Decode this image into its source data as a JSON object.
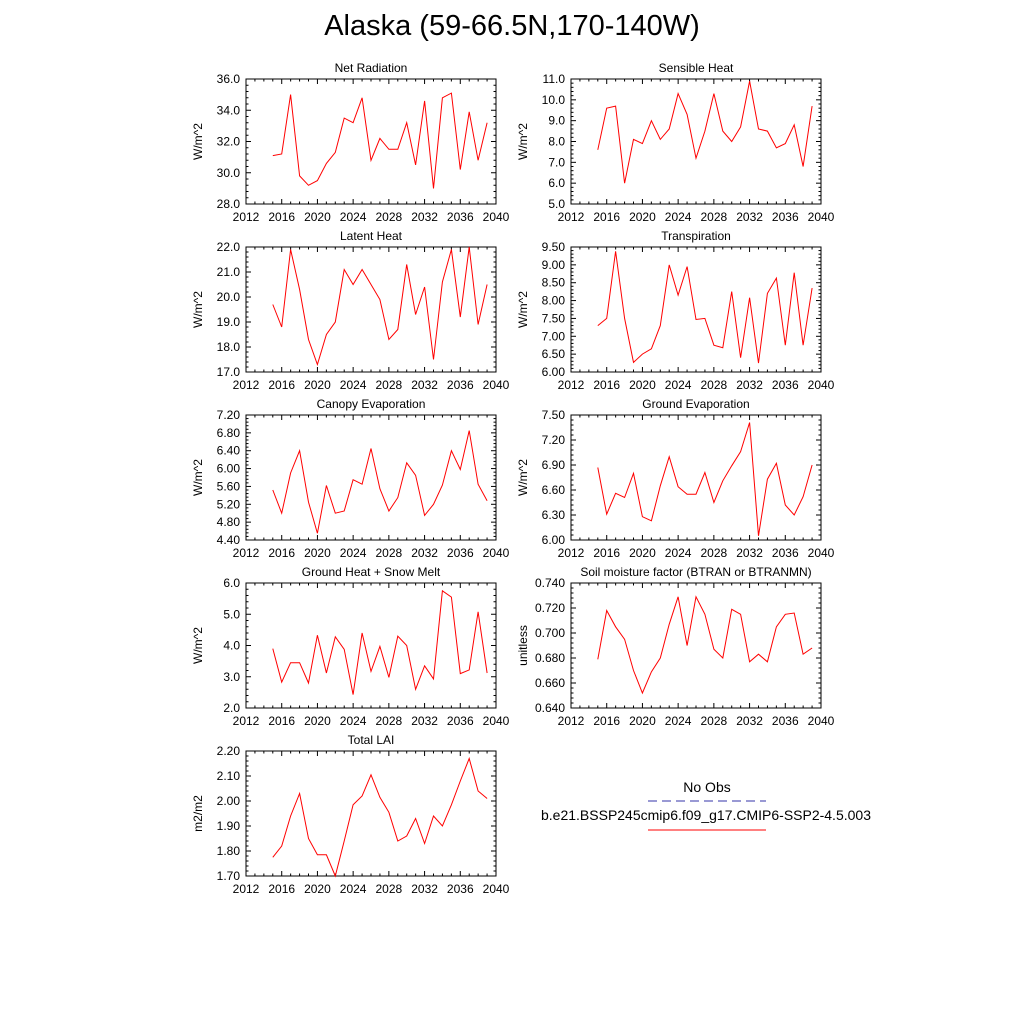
{
  "page": {
    "title": "Alaska (59-66.5N,170-140W)"
  },
  "legend": {
    "obs_label": "No Obs",
    "obs_color": "#3333aa",
    "model_label": "b.e21.BSSP245cmip6.f09_g17.CMIP6-SSP2-4.5.003",
    "model_color": "#ff0000"
  },
  "chart_data": [
    {
      "type": "line",
      "title": "Net Radiation",
      "ylabel": "W/m^2",
      "xlim": [
        2012,
        2040
      ],
      "ylim": [
        28,
        36
      ],
      "xticks": [
        2012,
        2016,
        2020,
        2024,
        2028,
        2032,
        2036,
        2040
      ],
      "yticks": [
        28,
        30,
        32,
        34,
        36
      ],
      "ydecimals": 1,
      "x": [
        2015,
        2016,
        2017,
        2018,
        2019,
        2020,
        2021,
        2022,
        2023,
        2024,
        2025,
        2026,
        2027,
        2028,
        2029,
        2030,
        2031,
        2032,
        2033,
        2034,
        2035,
        2036,
        2037,
        2038,
        2039
      ],
      "y": [
        31.1,
        31.2,
        35.0,
        29.8,
        29.2,
        29.5,
        30.6,
        31.3,
        33.5,
        33.2,
        34.8,
        30.8,
        32.2,
        31.5,
        31.5,
        33.2,
        30.5,
        34.6,
        29.0,
        34.8,
        35.1,
        30.2,
        33.9,
        30.8,
        33.2
      ],
      "series_color": "#ff0000"
    },
    {
      "type": "line",
      "title": "Sensible Heat",
      "ylabel": "W/m^2",
      "xlim": [
        2012,
        2040
      ],
      "ylim": [
        5,
        11
      ],
      "xticks": [
        2012,
        2016,
        2020,
        2024,
        2028,
        2032,
        2036,
        2040
      ],
      "yticks": [
        5,
        6,
        7,
        8,
        9,
        10,
        11
      ],
      "ydecimals": 1,
      "x": [
        2015,
        2016,
        2017,
        2018,
        2019,
        2020,
        2021,
        2022,
        2023,
        2024,
        2025,
        2026,
        2027,
        2028,
        2029,
        2030,
        2031,
        2032,
        2033,
        2034,
        2035,
        2036,
        2037,
        2038,
        2039
      ],
      "y": [
        7.6,
        9.6,
        9.7,
        6.0,
        8.1,
        7.9,
        9.0,
        8.1,
        8.6,
        10.3,
        9.3,
        7.2,
        8.5,
        10.3,
        8.5,
        8.0,
        8.7,
        10.9,
        8.6,
        8.5,
        7.7,
        7.9,
        8.8,
        6.8,
        9.7
      ],
      "series_color": "#ff0000"
    },
    {
      "type": "line",
      "title": "Latent Heat",
      "ylabel": "W/m^2",
      "xlim": [
        2012,
        2040
      ],
      "ylim": [
        17,
        22
      ],
      "xticks": [
        2012,
        2016,
        2020,
        2024,
        2028,
        2032,
        2036,
        2040
      ],
      "yticks": [
        17,
        18,
        19,
        20,
        21,
        22
      ],
      "ydecimals": 1,
      "x": [
        2015,
        2016,
        2017,
        2018,
        2019,
        2020,
        2021,
        2022,
        2023,
        2024,
        2025,
        2026,
        2027,
        2028,
        2029,
        2030,
        2031,
        2032,
        2033,
        2034,
        2035,
        2036,
        2037,
        2038,
        2039
      ],
      "y": [
        19.7,
        18.8,
        21.9,
        20.3,
        18.3,
        17.3,
        18.5,
        19.0,
        21.1,
        20.5,
        21.1,
        20.5,
        19.9,
        18.3,
        18.7,
        21.3,
        19.3,
        20.4,
        17.5,
        20.6,
        21.9,
        19.2,
        22.0,
        18.9,
        20.5
      ],
      "series_color": "#ff0000"
    },
    {
      "type": "line",
      "title": "Transpiration",
      "ylabel": "W/m^2",
      "xlim": [
        2012,
        2040
      ],
      "ylim": [
        6,
        9.5
      ],
      "xticks": [
        2012,
        2016,
        2020,
        2024,
        2028,
        2032,
        2036,
        2040
      ],
      "yticks": [
        6.0,
        6.5,
        7.0,
        7.5,
        8.0,
        8.5,
        9.0,
        9.5
      ],
      "ydecimals": 2,
      "x": [
        2015,
        2016,
        2017,
        2018,
        2019,
        2020,
        2021,
        2022,
        2023,
        2024,
        2025,
        2026,
        2027,
        2028,
        2029,
        2030,
        2031,
        2032,
        2033,
        2034,
        2035,
        2036,
        2037,
        2038,
        2039
      ],
      "y": [
        7.3,
        7.5,
        9.38,
        7.5,
        6.27,
        6.5,
        6.65,
        7.3,
        9.0,
        8.15,
        8.95,
        7.47,
        7.5,
        6.75,
        6.68,
        8.25,
        6.4,
        8.08,
        6.25,
        8.2,
        8.63,
        6.75,
        8.78,
        6.75,
        8.35
      ],
      "series_color": "#ff0000"
    },
    {
      "type": "line",
      "title": "Canopy Evaporation",
      "ylabel": "W/m^2",
      "xlim": [
        2012,
        2040
      ],
      "ylim": [
        4.4,
        7.2
      ],
      "xticks": [
        2012,
        2016,
        2020,
        2024,
        2028,
        2032,
        2036,
        2040
      ],
      "yticks": [
        4.4,
        4.8,
        5.2,
        5.6,
        6.0,
        6.4,
        6.8,
        7.2
      ],
      "ydecimals": 2,
      "x": [
        2015,
        2016,
        2017,
        2018,
        2019,
        2020,
        2021,
        2022,
        2023,
        2024,
        2025,
        2026,
        2027,
        2028,
        2029,
        2030,
        2031,
        2032,
        2033,
        2034,
        2035,
        2036,
        2037,
        2038,
        2039
      ],
      "y": [
        5.52,
        5.0,
        5.9,
        6.4,
        5.25,
        4.55,
        5.62,
        5.0,
        5.05,
        5.75,
        5.65,
        6.45,
        5.55,
        5.05,
        5.35,
        6.13,
        5.85,
        4.95,
        5.2,
        5.63,
        6.4,
        5.98,
        6.85,
        5.65,
        5.28
      ],
      "series_color": "#ff0000"
    },
    {
      "type": "line",
      "title": "Ground Evaporation",
      "ylabel": "W/m^2",
      "xlim": [
        2012,
        2040
      ],
      "ylim": [
        6.0,
        7.5
      ],
      "xticks": [
        2012,
        2016,
        2020,
        2024,
        2028,
        2032,
        2036,
        2040
      ],
      "yticks": [
        6.0,
        6.3,
        6.6,
        6.9,
        7.2,
        7.5
      ],
      "ydecimals": 2,
      "x": [
        2015,
        2016,
        2017,
        2018,
        2019,
        2020,
        2021,
        2022,
        2023,
        2024,
        2025,
        2026,
        2027,
        2028,
        2029,
        2030,
        2031,
        2032,
        2033,
        2034,
        2035,
        2036,
        2037,
        2038,
        2039
      ],
      "y": [
        6.87,
        6.31,
        6.56,
        6.51,
        6.8,
        6.28,
        6.23,
        6.65,
        7.0,
        6.64,
        6.55,
        6.55,
        6.81,
        6.45,
        6.71,
        6.89,
        7.06,
        7.41,
        6.05,
        6.73,
        6.92,
        6.42,
        6.3,
        6.52,
        6.9
      ],
      "series_color": "#ff0000"
    },
    {
      "type": "line",
      "title": "Ground Heat + Snow Melt",
      "ylabel": "W/m^2",
      "xlim": [
        2012,
        2040
      ],
      "ylim": [
        2,
        6
      ],
      "xticks": [
        2012,
        2016,
        2020,
        2024,
        2028,
        2032,
        2036,
        2040
      ],
      "yticks": [
        2,
        3,
        4,
        5,
        6
      ],
      "ydecimals": 1,
      "x": [
        2015,
        2016,
        2017,
        2018,
        2019,
        2020,
        2021,
        2022,
        2023,
        2024,
        2025,
        2026,
        2027,
        2028,
        2029,
        2030,
        2031,
        2032,
        2033,
        2034,
        2035,
        2036,
        2037,
        2038,
        2039
      ],
      "y": [
        3.9,
        2.83,
        3.45,
        3.45,
        2.8,
        4.33,
        3.12,
        4.28,
        3.88,
        2.43,
        4.4,
        3.17,
        3.97,
        2.98,
        4.3,
        4.0,
        2.6,
        3.35,
        2.93,
        5.75,
        5.55,
        3.1,
        3.22,
        5.08,
        3.12
      ],
      "series_color": "#ff0000"
    },
    {
      "type": "line",
      "title": "Soil moisture factor (BTRAN or BTRANMN)",
      "ylabel": "unitless",
      "xlim": [
        2012,
        2040
      ],
      "ylim": [
        0.64,
        0.74
      ],
      "xticks": [
        2012,
        2016,
        2020,
        2024,
        2028,
        2032,
        2036,
        2040
      ],
      "yticks": [
        0.64,
        0.66,
        0.68,
        0.7,
        0.72,
        0.74
      ],
      "ydecimals": 3,
      "x": [
        2015,
        2016,
        2017,
        2018,
        2019,
        2020,
        2021,
        2022,
        2023,
        2024,
        2025,
        2026,
        2027,
        2028,
        2029,
        2030,
        2031,
        2032,
        2033,
        2034,
        2035,
        2036,
        2037,
        2038,
        2039
      ],
      "y": [
        0.679,
        0.718,
        0.705,
        0.695,
        0.67,
        0.652,
        0.669,
        0.68,
        0.707,
        0.729,
        0.69,
        0.729,
        0.715,
        0.687,
        0.68,
        0.719,
        0.715,
        0.677,
        0.683,
        0.677,
        0.705,
        0.715,
        0.716,
        0.683,
        0.688
      ],
      "series_color": "#ff0000"
    },
    {
      "type": "line",
      "title": "Total LAI",
      "ylabel": "m2/m2",
      "xlim": [
        2012,
        2040
      ],
      "ylim": [
        1.7,
        2.2
      ],
      "xticks": [
        2012,
        2016,
        2020,
        2024,
        2028,
        2032,
        2036,
        2040
      ],
      "yticks": [
        1.7,
        1.8,
        1.9,
        2.0,
        2.1,
        2.2
      ],
      "ydecimals": 2,
      "x": [
        2015,
        2016,
        2017,
        2018,
        2019,
        2020,
        2021,
        2022,
        2023,
        2024,
        2025,
        2026,
        2027,
        2028,
        2029,
        2030,
        2031,
        2032,
        2033,
        2034,
        2035,
        2036,
        2037,
        2038,
        2039
      ],
      "y": [
        1.775,
        1.82,
        1.94,
        2.03,
        1.85,
        1.785,
        1.785,
        1.7,
        1.84,
        1.985,
        2.02,
        2.105,
        2.015,
        1.955,
        1.84,
        1.86,
        1.93,
        1.83,
        1.94,
        1.9,
        1.985,
        2.08,
        2.17,
        2.04,
        2.01
      ],
      "series_color": "#ff0000"
    }
  ]
}
